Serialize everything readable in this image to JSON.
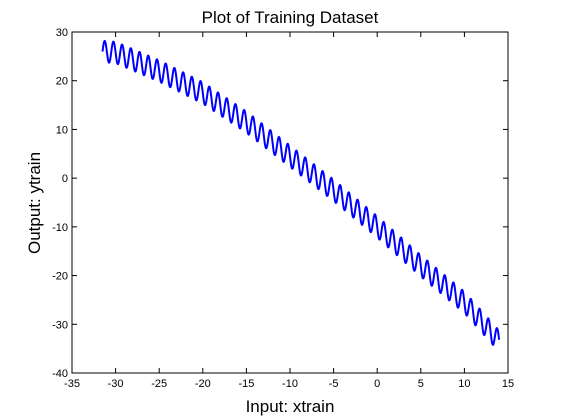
{
  "chart_data": {
    "type": "line",
    "title": "Plot of Training Dataset",
    "xlabel": "Input:  xtrain",
    "ylabel": "Output: ytrain",
    "xlim": [
      -35,
      15
    ],
    "ylim": [
      -40,
      30
    ],
    "xticks": [
      -35,
      -30,
      -25,
      -20,
      -15,
      -10,
      -5,
      0,
      5,
      10,
      15
    ],
    "yticks": [
      -40,
      -30,
      -20,
      -10,
      0,
      10,
      20,
      30
    ],
    "grid": false,
    "legend": "none",
    "line_color": "#0000ff",
    "series": [
      {
        "trend": {
          "x": [
            -31.5,
            -30,
            -25,
            -20,
            -15,
            -10,
            -5,
            0,
            5,
            10,
            14
          ],
          "y": [
            26,
            25.8,
            22,
            17.5,
            11.5,
            4.5,
            -2.5,
            -10,
            -18,
            -25.5,
            -33.5
          ]
        },
        "oscillation_amplitude": 2.2,
        "oscillation_period": 1.0
      }
    ]
  }
}
